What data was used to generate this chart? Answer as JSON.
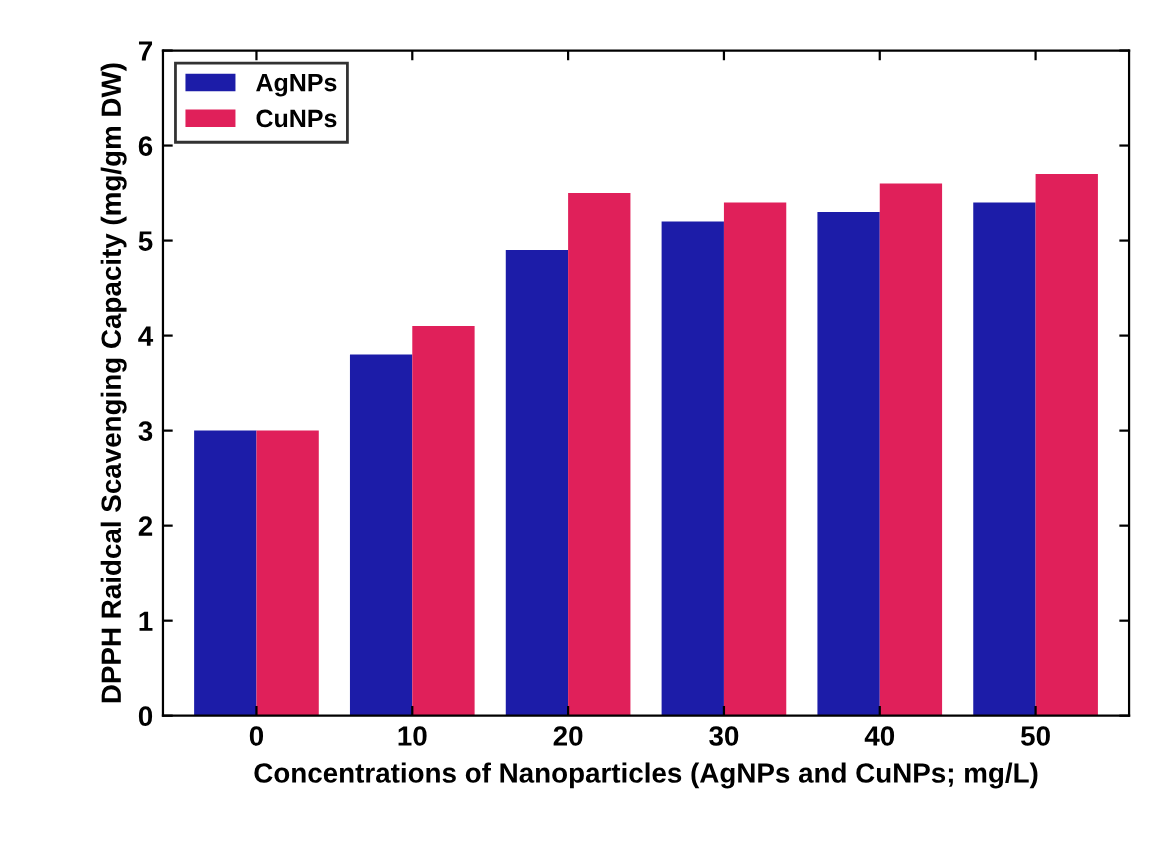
{
  "chart_data": {
    "type": "bar",
    "xlabel": "Concentrations of Nanoparticles (AgNPs and CuNPs; mg/L)",
    "ylabel": "DPPH Raidcal Scavenging Capacity (mg/gm DW)",
    "categories": [
      "0",
      "10",
      "20",
      "30",
      "40",
      "50"
    ],
    "series": [
      {
        "name": "AgNPs",
        "color": "#1c1ca8",
        "values": [
          3.0,
          3.8,
          4.9,
          5.2,
          5.3,
          5.4
        ]
      },
      {
        "name": "CuNPs",
        "color": "#e0205a",
        "values": [
          3.0,
          4.1,
          5.5,
          5.4,
          5.6,
          5.7
        ]
      }
    ],
    "ylim": [
      0,
      7
    ],
    "yticks": [
      0,
      1,
      2,
      3,
      4,
      5,
      6,
      7
    ],
    "grid": false,
    "legend": "top left"
  }
}
